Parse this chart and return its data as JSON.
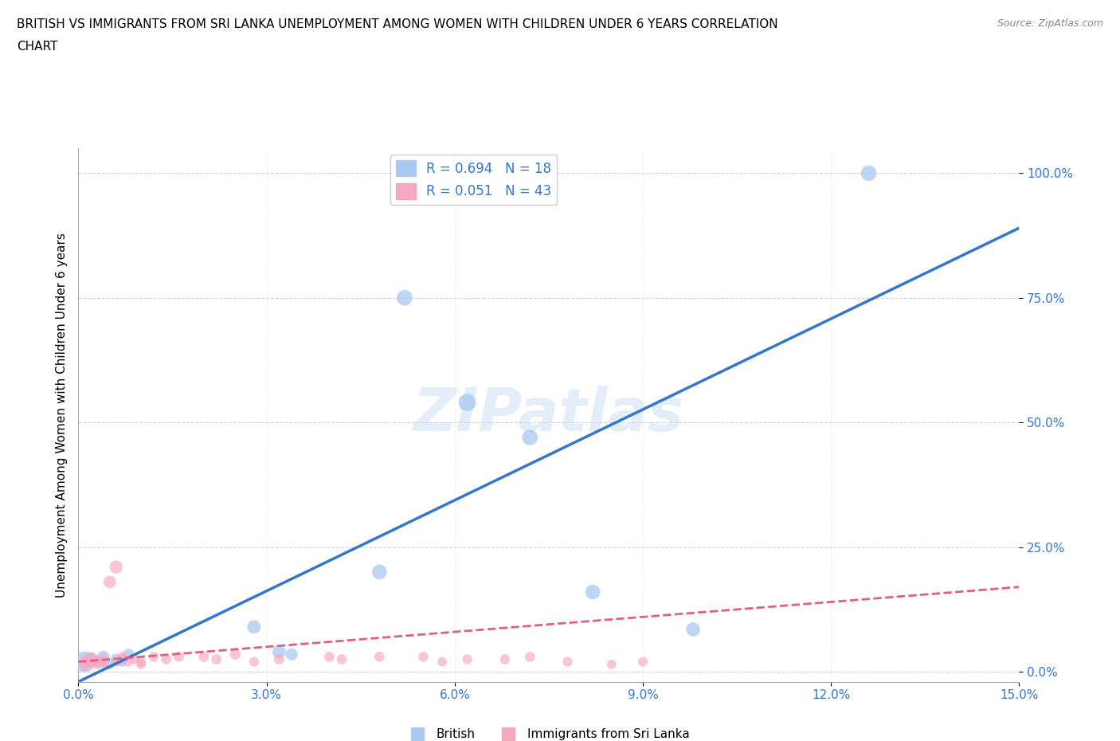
{
  "title_line1": "BRITISH VS IMMIGRANTS FROM SRI LANKA UNEMPLOYMENT AMONG WOMEN WITH CHILDREN UNDER 6 YEARS CORRELATION",
  "title_line2": "CHART",
  "source": "Source: ZipAtlas.com",
  "ylabel": "Unemployment Among Women with Children Under 6 years",
  "xlim": [
    0.0,
    0.15
  ],
  "ylim": [
    -0.02,
    1.05
  ],
  "xticks": [
    0.0,
    0.03,
    0.06,
    0.09,
    0.12,
    0.15
  ],
  "yticks": [
    0.0,
    0.25,
    0.5,
    0.75,
    1.0
  ],
  "xtick_labels": [
    "0.0%",
    "3.0%",
    "6.0%",
    "9.0%",
    "12.0%",
    "15.0%"
  ],
  "ytick_labels": [
    "0.0%",
    "25.0%",
    "50.0%",
    "75.0%",
    "100.0%"
  ],
  "british_R": 0.694,
  "british_N": 18,
  "immigrant_R": 0.051,
  "immigrant_N": 43,
  "british_color": "#a8c8f0",
  "british_line_color": "#3377cc",
  "immigrant_color": "#f8a8c0",
  "immigrant_line_color": "#e06080",
  "watermark_text": "ZIPatlas",
  "british_x": [
    0.001,
    0.002,
    0.003,
    0.004,
    0.005,
    0.006,
    0.007,
    0.008,
    0.028,
    0.032,
    0.034,
    0.048,
    0.052,
    0.062,
    0.072,
    0.082,
    0.098,
    0.126
  ],
  "british_y": [
    0.02,
    0.025,
    0.02,
    0.03,
    0.015,
    0.025,
    0.02,
    0.035,
    0.09,
    0.04,
    0.035,
    0.2,
    0.75,
    0.54,
    0.47,
    0.16,
    0.085,
    1.0
  ],
  "british_size": [
    350,
    150,
    100,
    120,
    80,
    100,
    80,
    100,
    150,
    150,
    120,
    180,
    200,
    250,
    200,
    180,
    160,
    200
  ],
  "immigrant_x": [
    0.001,
    0.001,
    0.001,
    0.001,
    0.002,
    0.002,
    0.002,
    0.002,
    0.003,
    0.003,
    0.003,
    0.003,
    0.004,
    0.004,
    0.004,
    0.005,
    0.006,
    0.006,
    0.007,
    0.007,
    0.008,
    0.009,
    0.01,
    0.01,
    0.012,
    0.014,
    0.016,
    0.02,
    0.022,
    0.025,
    0.028,
    0.032,
    0.04,
    0.042,
    0.048,
    0.055,
    0.058,
    0.062,
    0.068,
    0.072,
    0.078,
    0.085,
    0.09
  ],
  "immigrant_y": [
    0.02,
    0.025,
    0.015,
    0.01,
    0.02,
    0.025,
    0.015,
    0.03,
    0.02,
    0.025,
    0.015,
    0.02,
    0.02,
    0.015,
    0.025,
    0.18,
    0.21,
    0.02,
    0.025,
    0.03,
    0.02,
    0.025,
    0.02,
    0.015,
    0.03,
    0.025,
    0.03,
    0.03,
    0.025,
    0.035,
    0.02,
    0.025,
    0.03,
    0.025,
    0.03,
    0.03,
    0.02,
    0.025,
    0.025,
    0.03,
    0.02,
    0.015,
    0.02
  ],
  "immigrant_size": [
    80,
    70,
    70,
    60,
    80,
    70,
    60,
    80,
    80,
    70,
    80,
    60,
    80,
    70,
    80,
    130,
    140,
    80,
    90,
    80,
    80,
    80,
    75,
    75,
    85,
    85,
    90,
    90,
    85,
    95,
    80,
    85,
    85,
    85,
    85,
    80,
    75,
    80,
    80,
    85,
    80,
    70,
    75
  ],
  "blue_line_x0": 0.0,
  "blue_line_y0": -0.02,
  "blue_line_x1": 0.15,
  "blue_line_y1": 0.89,
  "pink_line_x0": 0.0,
  "pink_line_y0": 0.02,
  "pink_line_x1": 0.15,
  "pink_line_y1": 0.17
}
